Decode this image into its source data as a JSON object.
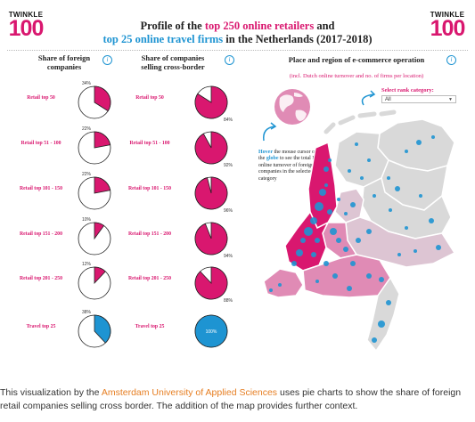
{
  "header": {
    "logo_top": "TWINKLE",
    "logo_num": "100",
    "title_part1": "Profile of the ",
    "title_highlight1": "top 250 online retailers",
    "title_part2": " and",
    "title_highlight2": "top 25 online travel firms",
    "title_part3": " in the Netherlands (2017-2018)"
  },
  "columns": {
    "foreign_title": "Share of foreign companies",
    "cross_border_title": "Share of companies selling cross-border",
    "map_title": "Place and region of e-commerce operation",
    "map_subtitle": "(incl. Dutch online turnover and no. of firms per location)",
    "info_glyph": "i"
  },
  "rows": [
    {
      "label": "Retail top 50",
      "foreign_pct_label": "34%",
      "cross_pct_label": "84%"
    },
    {
      "label": "Retail top 51 - 100",
      "foreign_pct_label": "22%",
      "cross_pct_label": "92%"
    },
    {
      "label": "Retail top 101 - 150",
      "foreign_pct_label": "22%",
      "cross_pct_label": "96%"
    },
    {
      "label": "Retail top 151 - 200",
      "foreign_pct_label": "10%",
      "cross_pct_label": "94%"
    },
    {
      "label": "Retail top 201 - 250",
      "foreign_pct_label": "12%",
      "cross_pct_label": "88%"
    },
    {
      "label": "Travel top 25",
      "foreign_pct_label": "38%",
      "cross_pct_label": "100%"
    }
  ],
  "chart_data": [
    {
      "type": "pie",
      "title": "Share of foreign companies",
      "categories": [
        "Retail top 50",
        "Retail top 51 - 100",
        "Retail top 101 - 150",
        "Retail top 151 - 200",
        "Retail top 201 - 250",
        "Travel top 25"
      ],
      "values": [
        34,
        22,
        22,
        10,
        12,
        38
      ],
      "colors": [
        "#d9176f",
        "#d9176f",
        "#d9176f",
        "#d9176f",
        "#d9176f",
        "#1e94d2"
      ]
    },
    {
      "type": "pie",
      "title": "Share of companies selling cross-border",
      "categories": [
        "Retail top 50",
        "Retail top 51 - 100",
        "Retail top 101 - 150",
        "Retail top 151 - 200",
        "Retail top 201 - 250",
        "Travel top 25"
      ],
      "values": [
        84,
        92,
        96,
        94,
        88,
        100
      ],
      "colors": [
        "#d9176f",
        "#d9176f",
        "#d9176f",
        "#d9176f",
        "#d9176f",
        "#1e94d2"
      ]
    }
  ],
  "map": {
    "select_label": "Select rank category:",
    "select_value": "All",
    "hover_prefix": "Hover",
    "hover_mid": " the mouse cursor over the ",
    "hover_globe": "globe",
    "hover_rest": " to see the total Dutch online turnover of foreign companies in the selected rank category"
  },
  "caption": {
    "part1": "This visualization by the ",
    "link": "Amsterdam University of Applied Sciences",
    "part2": " uses pie charts to show the share of foreign retail companies selling cross border. The addition of the map provides further context."
  },
  "colors": {
    "accent": "#d9176f",
    "travel": "#1e94d2",
    "map_dark": "#d9176f",
    "map_mid": "#e08bb5",
    "map_light": "#ddc5d3",
    "map_grey": "#d9d9d9"
  }
}
